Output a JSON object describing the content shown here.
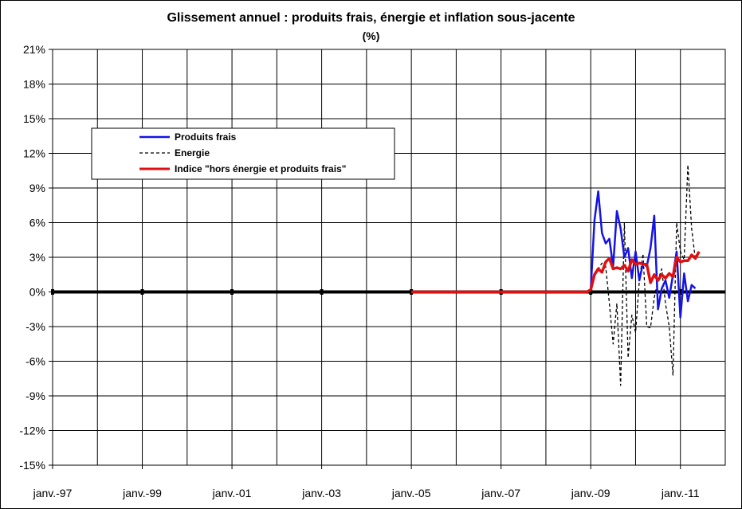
{
  "chart_data": {
    "type": "line",
    "title": "Glissement annuel : produits frais, énergie et inflation sous-jacente",
    "subtitle": "(%)",
    "xlabel": "",
    "ylabel": "",
    "x_range": [
      "1997-01",
      "2011-12"
    ],
    "ylim": [
      -15,
      21
    ],
    "yticks": [
      21,
      18,
      15,
      12,
      9,
      6,
      3,
      0,
      -3,
      -6,
      -9,
      -12,
      -15
    ],
    "ytick_labels": [
      "21%",
      "18%",
      "15%",
      "12%",
      "9%",
      "6%",
      "3%",
      "0%",
      "-3%",
      "-6%",
      "-9%",
      "-12%",
      "-15%"
    ],
    "xtick_labels": [
      {
        "date": "1997-01",
        "label": "janv.-97"
      },
      {
        "date": "1999-01",
        "label": "janv.-99"
      },
      {
        "date": "2001-01",
        "label": "janv.-01"
      },
      {
        "date": "2003-01",
        "label": "janv.-03"
      },
      {
        "date": "2005-01",
        "label": "janv.-05"
      },
      {
        "date": "2007-01",
        "label": "janv.-07"
      },
      {
        "date": "2009-01",
        "label": "janv.-09"
      },
      {
        "date": "2011-01",
        "label": "janv.-11"
      }
    ],
    "grid": true,
    "legend_position": "top-left",
    "series": [
      {
        "name": "Produits frais",
        "color": "#1414e6",
        "dash": "solid",
        "points": [
          [
            "2005-01",
            0
          ],
          [
            "2008-12",
            0
          ],
          [
            "2009-01",
            0.2
          ],
          [
            "2009-02",
            6.2
          ],
          [
            "2009-03",
            8.7
          ],
          [
            "2009-04",
            5.1
          ],
          [
            "2009-05",
            4.2
          ],
          [
            "2009-06",
            4.6
          ],
          [
            "2009-07",
            2.2
          ],
          [
            "2009-08",
            7.0
          ],
          [
            "2009-09",
            5.5
          ],
          [
            "2009-10",
            3.0
          ],
          [
            "2009-11",
            3.8
          ],
          [
            "2009-12",
            1.2
          ],
          [
            "2010-01",
            3.5
          ],
          [
            "2010-02",
            1.0
          ],
          [
            "2010-03",
            2.5
          ],
          [
            "2010-04",
            2.2
          ],
          [
            "2010-05",
            3.8
          ],
          [
            "2010-06",
            6.6
          ],
          [
            "2010-07",
            -1.5
          ],
          [
            "2010-08",
            0.3
          ],
          [
            "2010-09",
            1.0
          ],
          [
            "2010-10",
            -0.5
          ],
          [
            "2010-11",
            1.5
          ],
          [
            "2010-12",
            3.5
          ],
          [
            "2011-01",
            -2.2
          ],
          [
            "2011-02",
            1.6
          ],
          [
            "2011-03",
            -0.8
          ],
          [
            "2011-04",
            0.6
          ],
          [
            "2011-05",
            0.3
          ]
        ]
      },
      {
        "name": "Energie",
        "color": "#000000",
        "dash": "dashed",
        "points": [
          [
            "2005-01",
            0
          ],
          [
            "2008-12",
            0
          ],
          [
            "2009-01",
            0.3
          ],
          [
            "2009-02",
            1.5
          ],
          [
            "2009-03",
            2.0
          ],
          [
            "2009-04",
            2.5
          ],
          [
            "2009-05",
            2.2
          ],
          [
            "2009-06",
            -1.0
          ],
          [
            "2009-07",
            -4.5
          ],
          [
            "2009-08",
            -1.0
          ],
          [
            "2009-09",
            -8.1
          ],
          [
            "2009-10",
            6.0
          ],
          [
            "2009-11",
            -5.7
          ],
          [
            "2009-12",
            -2.0
          ],
          [
            "2010-01",
            -3.5
          ],
          [
            "2010-02",
            1.0
          ],
          [
            "2010-03",
            3.3
          ],
          [
            "2010-04",
            -3.0
          ],
          [
            "2010-05",
            -3.1
          ],
          [
            "2010-06",
            -0.5
          ],
          [
            "2010-07",
            1.0
          ],
          [
            "2010-08",
            2.0
          ],
          [
            "2010-09",
            -1.0
          ],
          [
            "2010-10",
            -3.0
          ],
          [
            "2010-11",
            -7.2
          ],
          [
            "2010-12",
            6.0
          ],
          [
            "2011-01",
            3.5
          ],
          [
            "2011-02",
            2.8
          ],
          [
            "2011-03",
            11.0
          ],
          [
            "2011-04",
            5.5
          ],
          [
            "2011-05",
            2.8
          ]
        ]
      },
      {
        "name": "Indice \"hors énergie et produits frais\"",
        "color": "#e01010",
        "dash": "solid",
        "points": [
          [
            "2005-01",
            0
          ],
          [
            "2008-12",
            0
          ],
          [
            "2009-01",
            0.2
          ],
          [
            "2009-02",
            1.5
          ],
          [
            "2009-03",
            2.0
          ],
          [
            "2009-04",
            1.7
          ],
          [
            "2009-05",
            2.6
          ],
          [
            "2009-06",
            2.9
          ],
          [
            "2009-07",
            2.0
          ],
          [
            "2009-08",
            2.1
          ],
          [
            "2009-09",
            2.0
          ],
          [
            "2009-10",
            2.3
          ],
          [
            "2009-11",
            1.8
          ],
          [
            "2009-12",
            2.8
          ],
          [
            "2010-01",
            2.4
          ],
          [
            "2010-02",
            2.5
          ],
          [
            "2010-03",
            2.4
          ],
          [
            "2010-04",
            2.4
          ],
          [
            "2010-05",
            0.8
          ],
          [
            "2010-06",
            1.5
          ],
          [
            "2010-07",
            1.0
          ],
          [
            "2010-08",
            1.5
          ],
          [
            "2010-09",
            1.2
          ],
          [
            "2010-10",
            1.6
          ],
          [
            "2010-11",
            1.3
          ],
          [
            "2010-12",
            3.0
          ],
          [
            "2011-01",
            2.6
          ],
          [
            "2011-02",
            2.7
          ],
          [
            "2011-03",
            2.7
          ],
          [
            "2011-04",
            3.2
          ],
          [
            "2011-05",
            2.9
          ],
          [
            "2011-06",
            3.5
          ]
        ]
      }
    ]
  }
}
